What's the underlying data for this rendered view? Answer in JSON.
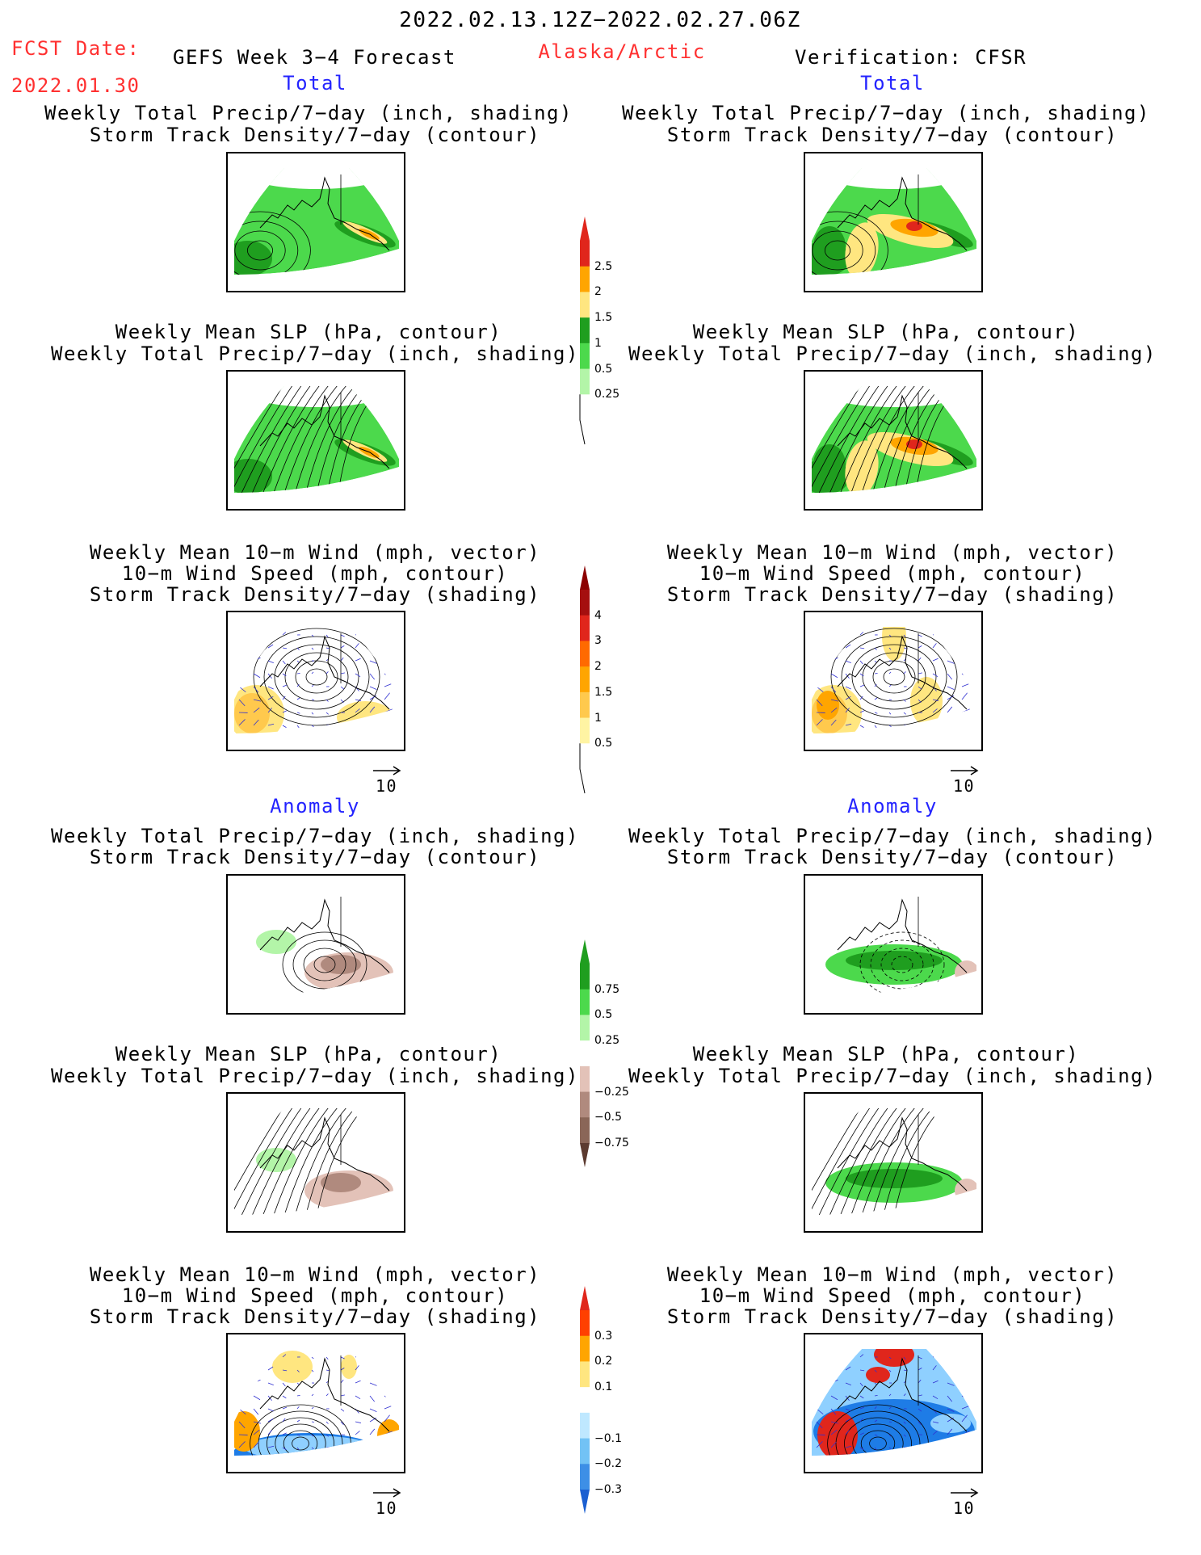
{
  "header": {
    "date_range": "2022.02.13.12Z−2022.02.27.06Z",
    "fcst_label": "FCST Date:",
    "fcst_date": "2022.01.30",
    "product": "GEFS Week 3−4 Forecast",
    "region": "Alaska/Arctic",
    "verification": "Verification: CFSR"
  },
  "section_labels": {
    "total": "Total",
    "anomaly": "Anomaly"
  },
  "titles": {
    "precip_storm": [
      "Weekly Total Precip/7−day (inch, shading)",
      "Storm Track Density/7−day (contour)"
    ],
    "slp_precip": [
      "Weekly Mean SLP (hPa, contour)",
      "Weekly Total Precip/7−day (inch, shading)"
    ],
    "wind_storm": [
      "Weekly Mean 10−m Wind (mph, vector)",
      "10−m Wind Speed (mph, contour)",
      "Storm Track Density/7−day (shading)"
    ]
  },
  "vector_reference": "10",
  "colorbars": [
    {
      "name": "total-precip",
      "labels": [
        "2.5",
        "2",
        "1.5",
        "1",
        "0.5",
        "0.25"
      ],
      "colors": [
        "#e0261c",
        "#ffa500",
        "#ffe680",
        "#1f9e1f",
        "#4cd94c",
        "#b3f5a8"
      ],
      "has_white": true
    },
    {
      "name": "total-storm-density",
      "labels": [
        "4",
        "3",
        "2",
        "1.5",
        "1",
        "0.5"
      ],
      "colors": [
        "#a50f0f",
        "#e0261c",
        "#ff6a00",
        "#ffa500",
        "#ffc94d",
        "#fff4a3"
      ],
      "top": "#8b0000",
      "has_white": true
    },
    {
      "name": "anomaly-precip",
      "labels": [
        "0.75",
        "0.5",
        "0.25",
        "−0.25",
        "−0.5",
        "−0.75"
      ],
      "colors": [
        "#1f9e1f",
        "#4cd94c",
        "#b3f5a8",
        "#ffffff",
        "#e3c2b8",
        "#b08a7e",
        "#8a6658"
      ],
      "bottom": "#5c3b30"
    },
    {
      "name": "anomaly-storm-density",
      "labels": [
        "0.3",
        "0.2",
        "0.1",
        "−0.1",
        "−0.2",
        "−0.3"
      ],
      "colors": [
        "#ff4000",
        "#ffa500",
        "#ffe680",
        "#ffffff",
        "#bfe8ff",
        "#72c2f5",
        "#3d8fe6"
      ],
      "top": "#e0261c",
      "bottom": "#1b5fd1"
    }
  ],
  "panel_colors": {
    "land_green": "#4cd94c",
    "dark_green": "#1f9e1f",
    "light_green": "#b3f5a8",
    "orange": "#ffa500",
    "yellow": "#ffe680",
    "red": "#e0261c",
    "brown": "#b08a7e",
    "light_brown": "#e3c2b8",
    "blue": "#1e7ce6",
    "light_blue": "#8fd0ff",
    "vector_blue": "#3030d0"
  }
}
